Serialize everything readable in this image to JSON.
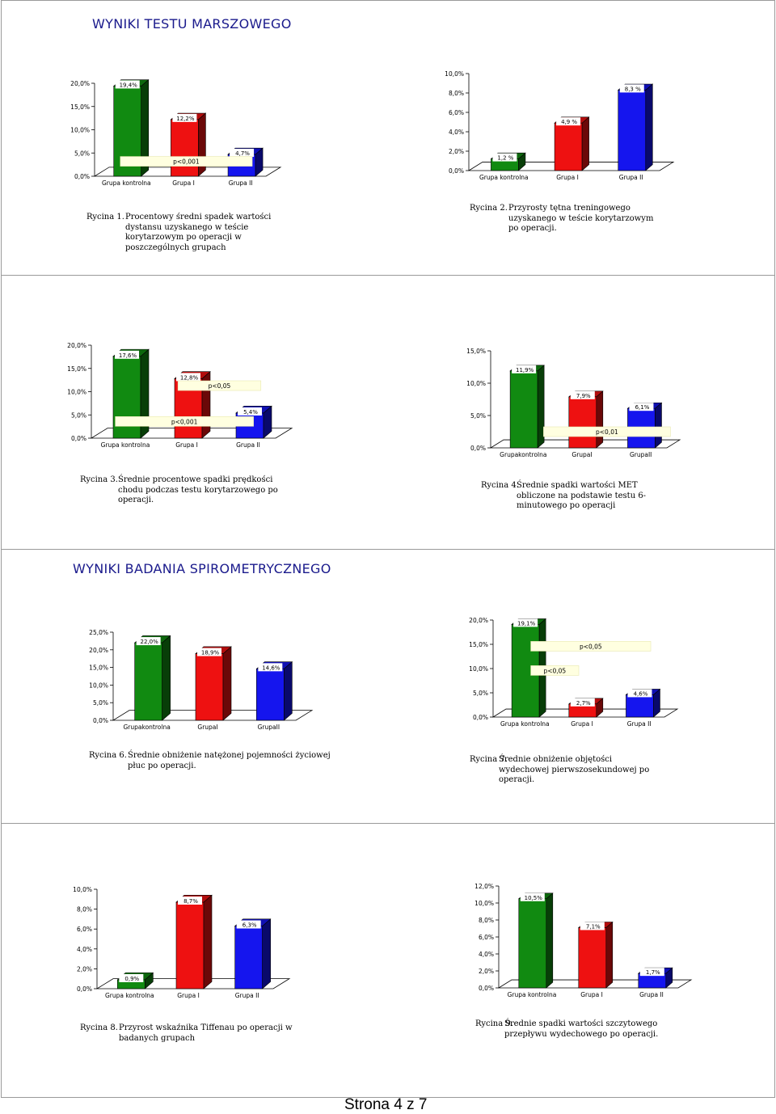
{
  "sections": [
    {
      "heading": "WYNIKI TESTU MARSZOWEGO"
    },
    {
      "heading": "WYNIKI BADANIA SPIROMETRYCZNEGO"
    }
  ],
  "colors": {
    "green": "#118a11",
    "red": "#ee1111",
    "blue": "#1515ee",
    "heading": "#1a1a8c"
  },
  "captions": {
    "r1": {
      "num": "Rycina 1.",
      "text": "Procentowy średni spadek wartości dystansu uzyskanego w teście korytarzowym po operacji w poszczególnych grupach"
    },
    "r2": {
      "num": "Rycina 2.",
      "text": "Przyrosty tętna treningowego uzyskanego w teście korytarzowym po operacji."
    },
    "r3": {
      "num": "Rycina 3.",
      "text": "Średnie procentowe spadki prędkości chodu podczas testu korytarzowego po operacji."
    },
    "r4": {
      "num": "Rycina 4.",
      "text": "Średnie spadki wartości MET obliczone na podstawie testu 6-minutowego po operacji"
    },
    "r6": {
      "num": "Rycina 6.",
      "text": "Średnie obniżenie natężonej pojemności życiowej płuc po operacji."
    },
    "r7": {
      "num": "Rycina 7.",
      "text": "Średnie obniżenie objętości wydechowej pierwszosekundowej po operacji."
    },
    "r8": {
      "num": "Rycina 8.",
      "text": "Przyrost wskaźnika Tiffenau po operacji w badanych grupach"
    },
    "r9": {
      "num": "Rycina 9.",
      "text": "Średnie spadki wartości szczytowego przepływu wydechowego po operacji."
    }
  },
  "footer": "Strona 4 z 7",
  "chart_data": [
    {
      "id": "r1",
      "type": "bar",
      "categories": [
        "Grupa kontrolna",
        "Grupa I",
        "Grupa II"
      ],
      "values": [
        19.4,
        12.2,
        4.7
      ],
      "labels": [
        "19,4%",
        "12,2%",
        "4,7%"
      ],
      "ticks": [
        "0,0%",
        "5,0%",
        "10,0%",
        "15,0%",
        "20,0%"
      ],
      "ylim": [
        0,
        20
      ],
      "annotations": [
        {
          "text": "p<0,001",
          "y": 3.2,
          "from": 0.15,
          "to": 0.92
        }
      ],
      "colors": [
        "#118a11",
        "#ee1111",
        "#1515ee"
      ]
    },
    {
      "id": "r2",
      "type": "bar",
      "categories": [
        "Grupa kontrolna",
        "Grupa I",
        "Grupa II"
      ],
      "values": [
        1.2,
        4.9,
        8.3
      ],
      "labels": [
        "1,2 %",
        "4,9 %",
        "8,3 %"
      ],
      "ticks": [
        "0,0%",
        "2,0%",
        "4,0%",
        "6,0%",
        "8,0%",
        "10,0%"
      ],
      "ylim": [
        0,
        10
      ],
      "annotations": [],
      "colors": [
        "#118a11",
        "#ee1111",
        "#1515ee"
      ]
    },
    {
      "id": "r3",
      "type": "bar",
      "categories": [
        "Grupa kontrolna",
        "Grupa I",
        "Grupa II"
      ],
      "values": [
        17.6,
        12.8,
        5.4
      ],
      "labels": [
        "17,6%",
        "12,8%",
        "5,4%"
      ],
      "ticks": [
        "0,0%",
        "5,0%",
        "10,0%",
        "15,0%",
        "20,0%"
      ],
      "ylim": [
        0,
        20
      ],
      "annotations": [
        {
          "text": "p<0,05",
          "y": 11.3,
          "from": 0.47,
          "to": 0.92
        },
        {
          "text": "p<0,001",
          "y": 3.6,
          "from": 0.13,
          "to": 0.88
        }
      ],
      "colors": [
        "#118a11",
        "#ee1111",
        "#1515ee"
      ]
    },
    {
      "id": "r4",
      "type": "bar",
      "categories": [
        "Grupakontrolna",
        "GrupaI",
        "GrupaII"
      ],
      "values": [
        11.9,
        7.9,
        6.1
      ],
      "labels": [
        "11,9%",
        "7,9%",
        "6,1%"
      ],
      "ticks": [
        "0,0%",
        "5,0%",
        "10,0%",
        "15,0%"
      ],
      "ylim": [
        0,
        15
      ],
      "annotations": [
        {
          "text": "p<0,01",
          "y": 2.5,
          "from": 0.3,
          "to": 1.02
        }
      ],
      "colors": [
        "#118a11",
        "#ee1111",
        "#1515ee"
      ]
    },
    {
      "id": "r6",
      "type": "bar",
      "categories": [
        "Grupakontrolna",
        "GrupaI",
        "GrupaII"
      ],
      "values": [
        22.0,
        18.9,
        14.6
      ],
      "labels": [
        "22,0%",
        "18,9%",
        "14,6%"
      ],
      "ticks": [
        "0,0%",
        "5,0%",
        "10,0%",
        "15,0%",
        "20,0%",
        "25,0%"
      ],
      "ylim": [
        0,
        25
      ],
      "annotations": [],
      "colors": [
        "#118a11",
        "#ee1111",
        "#1515ee"
      ]
    },
    {
      "id": "r7",
      "type": "bar",
      "categories": [
        "Grupa kontrolna",
        "Grupa I",
        "Grupa II"
      ],
      "values": [
        19.1,
        2.7,
        4.6
      ],
      "labels": [
        "19,1%",
        "2,7%",
        "4,6%"
      ],
      "ticks": [
        "0,0%",
        "5,0%",
        "10,0%",
        "15,0%",
        "20,0%"
      ],
      "ylim": [
        0,
        20
      ],
      "annotations": [
        {
          "text": "p<0,05",
          "y": 14.6,
          "from": 0.22,
          "to": 0.92
        },
        {
          "text": "p<0,05",
          "y": 9.6,
          "from": 0.22,
          "to": 0.5
        }
      ],
      "colors": [
        "#118a11",
        "#ee1111",
        "#1515ee"
      ]
    },
    {
      "id": "r8",
      "type": "bar",
      "categories": [
        "Grupa kontrolna",
        "Grupa I",
        "Grupa II"
      ],
      "values": [
        0.9,
        8.7,
        6.3
      ],
      "labels": [
        "0,9%",
        "8,7%",
        "6,3%"
      ],
      "ticks": [
        "0,0%",
        "2,0%",
        "4,0%",
        "6,0%",
        "8,0%",
        "10,0%"
      ],
      "ylim": [
        0,
        10
      ],
      "annotations": [],
      "colors": [
        "#118a11",
        "#ee1111",
        "#1515ee"
      ]
    },
    {
      "id": "r9",
      "type": "bar",
      "categories": [
        "Grupa kontrolna",
        "Grupa I",
        "Grupa II"
      ],
      "values": [
        10.5,
        7.1,
        1.7
      ],
      "labels": [
        "10,5%",
        "7,1%",
        "1,7%"
      ],
      "ticks": [
        "0,0%",
        "2,0%",
        "4,0%",
        "6,0%",
        "8,0%",
        "10,0%",
        "12,0%"
      ],
      "ylim": [
        0,
        12
      ],
      "annotations": [],
      "colors": [
        "#118a11",
        "#ee1111",
        "#1515ee"
      ]
    }
  ]
}
